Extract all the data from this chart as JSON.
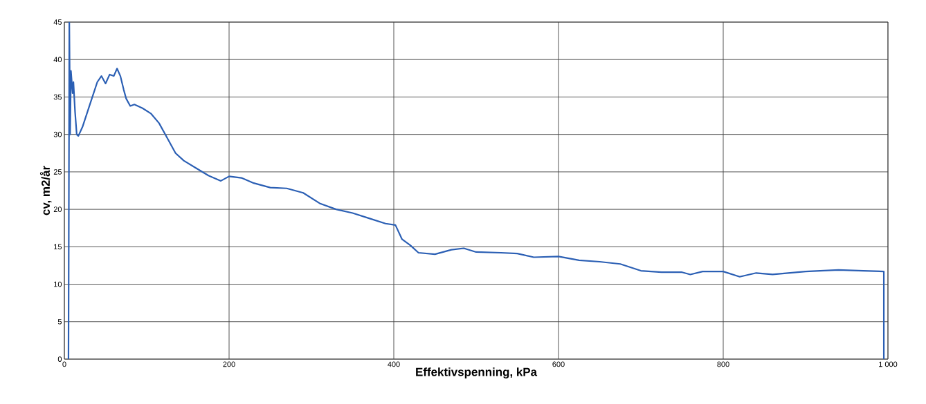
{
  "chart_data": {
    "type": "line",
    "xlabel": "Effektivspenning, kPa",
    "ylabel": "cv, m2/år",
    "xlim": [
      0,
      1000
    ],
    "ylim": [
      0,
      45
    ],
    "xticks": [
      0,
      200,
      400,
      600,
      800,
      {
        "value": 1000,
        "label": "1 000"
      }
    ],
    "yticks": [
      0,
      5,
      10,
      15,
      20,
      25,
      30,
      35,
      40,
      45
    ],
    "grid": true,
    "marker": "none",
    "line_style": "solid",
    "series": [
      {
        "color": "#2b5fb4",
        "x": [
          5,
          6,
          7,
          8,
          9,
          10,
          11,
          13,
          15,
          17,
          22,
          28,
          34,
          40,
          45,
          50,
          55,
          60,
          64,
          68,
          72,
          75,
          80,
          85,
          95,
          105,
          115,
          125,
          135,
          145,
          160,
          175,
          190,
          200,
          215,
          230,
          250,
          270,
          290,
          310,
          330,
          350,
          370,
          390,
          402,
          410,
          420,
          430,
          450,
          470,
          485,
          500,
          530,
          550,
          570,
          600,
          625,
          650,
          675,
          700,
          725,
          750,
          760,
          775,
          800,
          820,
          840,
          860,
          900,
          940,
          970,
          995,
          995
        ],
        "values": [
          0,
          45,
          30,
          38.5,
          37,
          35.5,
          37,
          33,
          30,
          29.8,
          31,
          33,
          35,
          37,
          37.8,
          36.8,
          38,
          37.8,
          38.8,
          37.8,
          36,
          34.8,
          33.8,
          34,
          33.5,
          32.8,
          31.5,
          29.5,
          27.5,
          26.5,
          25.5,
          24.5,
          23.8,
          24.4,
          24.2,
          23.5,
          22.9,
          22.8,
          22.2,
          20.8,
          20,
          19.5,
          18.8,
          18.1,
          17.9,
          16,
          15.2,
          14.2,
          14,
          14.6,
          14.8,
          14.3,
          14.2,
          14.1,
          13.6,
          13.7,
          13.2,
          13,
          12.7,
          11.8,
          11.6,
          11.6,
          11.3,
          11.7,
          11.7,
          11,
          11.5,
          11.3,
          11.7,
          11.9,
          11.8,
          11.7,
          0
        ]
      }
    ]
  }
}
